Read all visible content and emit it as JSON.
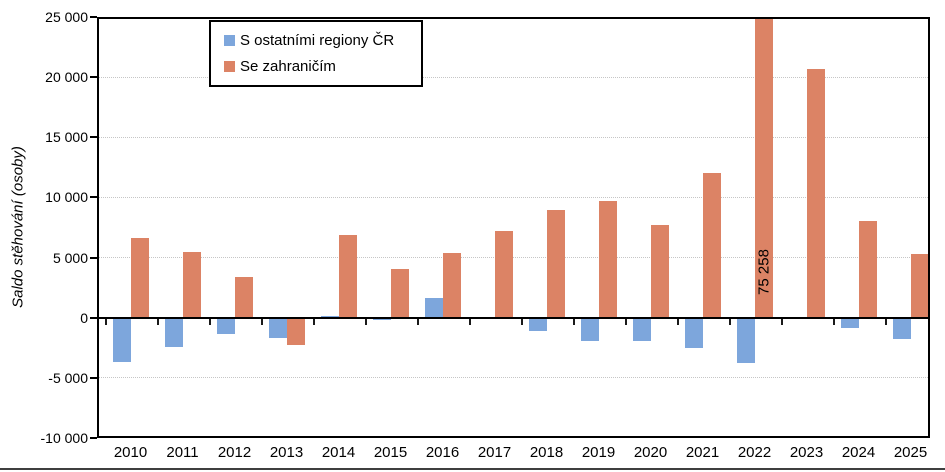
{
  "chart_data": {
    "type": "bar",
    "title": "",
    "ylabel": "Saldo stěhování (osoby)",
    "xlabel": "",
    "categories": [
      "2010",
      "2011",
      "2012",
      "2013",
      "2014",
      "2015",
      "2016",
      "2017",
      "2018",
      "2019",
      "2020",
      "2021",
      "2022",
      "2023",
      "2024",
      "2025"
    ],
    "series": [
      {
        "name": "S ostatními regiony ČR",
        "color": "#7da6dc",
        "values": [
          -3650,
          -2400,
          -1350,
          -1650,
          150,
          -150,
          1650,
          -100,
          -1100,
          -1900,
          -1950,
          -2500,
          -3800,
          0,
          -850,
          -1800
        ]
      },
      {
        "name": "Se zahraničím",
        "color": "#dc8365",
        "values": [
          6600,
          5500,
          3350,
          -2300,
          6900,
          4050,
          5400,
          7200,
          8950,
          9700,
          7700,
          12050,
          75258,
          20700,
          8000,
          5300
        ]
      }
    ],
    "ylim": [
      -10000,
      25000
    ],
    "yticks": [
      {
        "value": 25000,
        "label": "25 000"
      },
      {
        "value": 20000,
        "label": "20 000"
      },
      {
        "value": 15000,
        "label": "15 000"
      },
      {
        "value": 10000,
        "label": "10 000"
      },
      {
        "value": 5000,
        "label": "5 000"
      },
      {
        "value": 0,
        "label": "0"
      },
      {
        "value": -5000,
        "label": "-5 000"
      },
      {
        "value": -10000,
        "label": "-10 000"
      }
    ],
    "grid": "horizontal-dotted",
    "legend_position": "inside-top",
    "annotations": [
      {
        "text": "75 258",
        "series": "Se zahraničím",
        "category": "2022",
        "value": 75258
      }
    ]
  },
  "colors": {
    "background": "#ffffff",
    "axis": "#000000",
    "gridline": "#c6c6c6"
  }
}
